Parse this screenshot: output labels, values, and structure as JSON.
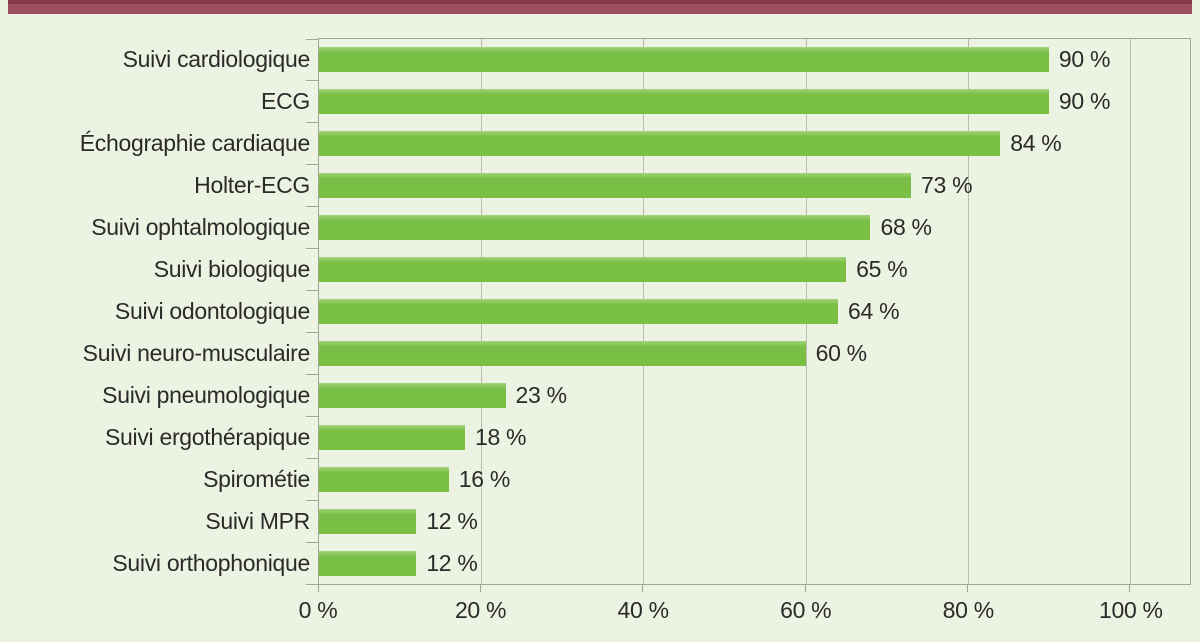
{
  "figure": {
    "background": "#edf3e3",
    "accent_bar_color": "#9d4e61",
    "accent_bar_dark": "#86394b"
  },
  "chart_data": {
    "type": "bar",
    "orientation": "horizontal",
    "title": "",
    "categories": [
      "Suivi cardiologique",
      "ECG",
      "Échographie cardiaque",
      "Holter-ECG",
      "Suivi ophtalmologique",
      "Suivi biologique",
      "Suivi odontologique",
      "Suivi neuro-musculaire",
      "Suivi pneumologique",
      "Suivi ergothérapique",
      "Spirométie",
      "Suivi MPR",
      "Suivi orthophonique"
    ],
    "values": [
      90,
      90,
      84,
      73,
      68,
      65,
      64,
      60,
      23,
      18,
      16,
      12,
      12
    ],
    "value_suffix": " %",
    "x_tick_values": [
      0,
      20,
      40,
      60,
      80,
      100
    ],
    "x_tick_suffix": " %",
    "xlim": [
      0,
      107.4
    ],
    "grid": true,
    "legend": false,
    "bar_color": "#7abf45",
    "bar_highlight": "#a4d47e",
    "gridline_color": "#b9beb0",
    "axis_color": "#a0a596",
    "text_color": "#2a2a28"
  }
}
